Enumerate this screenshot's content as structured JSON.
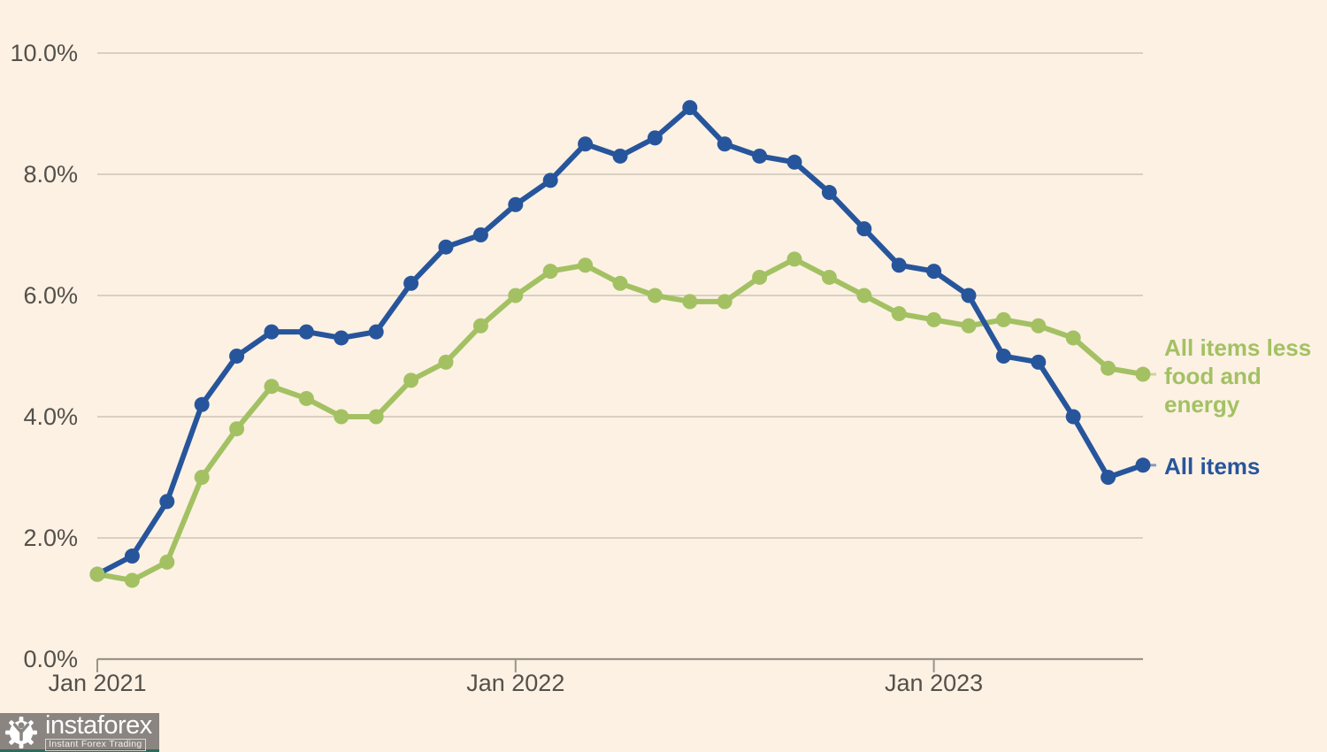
{
  "page": {
    "background_color": "#fcf1e3",
    "gridline_color": "#cdc5b8",
    "axis_color": "#9b9489",
    "label_color": "#55504a"
  },
  "watermark": {
    "brand": "instaforex",
    "tagline": "Instant Forex Trading",
    "bg_color": "#8a8580",
    "strip_color": "#2e6b5e"
  },
  "chart_data": {
    "type": "line",
    "title": "",
    "x_unit": "month",
    "x_range": [
      "Jan 2021",
      "Jul 2023"
    ],
    "ylim": [
      0,
      10
    ],
    "grid": true,
    "legend_position": "right",
    "y_ticks": [
      {
        "value": 0,
        "label": "0.0%"
      },
      {
        "value": 2,
        "label": "2.0%"
      },
      {
        "value": 4,
        "label": "4.0%"
      },
      {
        "value": 6,
        "label": "6.0%"
      },
      {
        "value": 8,
        "label": "8.0%"
      },
      {
        "value": 10,
        "label": "10.0%"
      }
    ],
    "x_ticks": [
      {
        "index": 0,
        "label": "Jan 2021"
      },
      {
        "index": 12,
        "label": "Jan 2022"
      },
      {
        "index": 24,
        "label": "Jan 2023"
      }
    ],
    "series": [
      {
        "name": "All items",
        "display": "All items",
        "color": "#27559c",
        "values": [
          1.4,
          1.7,
          2.6,
          4.2,
          5.0,
          5.4,
          5.4,
          5.3,
          5.4,
          6.2,
          6.8,
          7.0,
          7.5,
          7.9,
          8.5,
          8.3,
          8.6,
          9.1,
          8.5,
          8.3,
          8.2,
          7.7,
          7.1,
          6.5,
          6.4,
          6.0,
          5.0,
          4.9,
          4.0,
          3.0,
          3.2
        ]
      },
      {
        "name": "All items less food and energy",
        "display": "All items less\nfood and\nenergy",
        "color": "#a3c163",
        "values": [
          1.4,
          1.3,
          1.6,
          3.0,
          3.8,
          4.5,
          4.3,
          4.0,
          4.0,
          4.6,
          4.9,
          5.5,
          6.0,
          6.4,
          6.5,
          6.2,
          6.0,
          5.9,
          5.9,
          6.3,
          6.6,
          6.3,
          6.0,
          5.7,
          5.6,
          5.5,
          5.6,
          5.5,
          5.3,
          4.8,
          4.7
        ]
      }
    ]
  }
}
